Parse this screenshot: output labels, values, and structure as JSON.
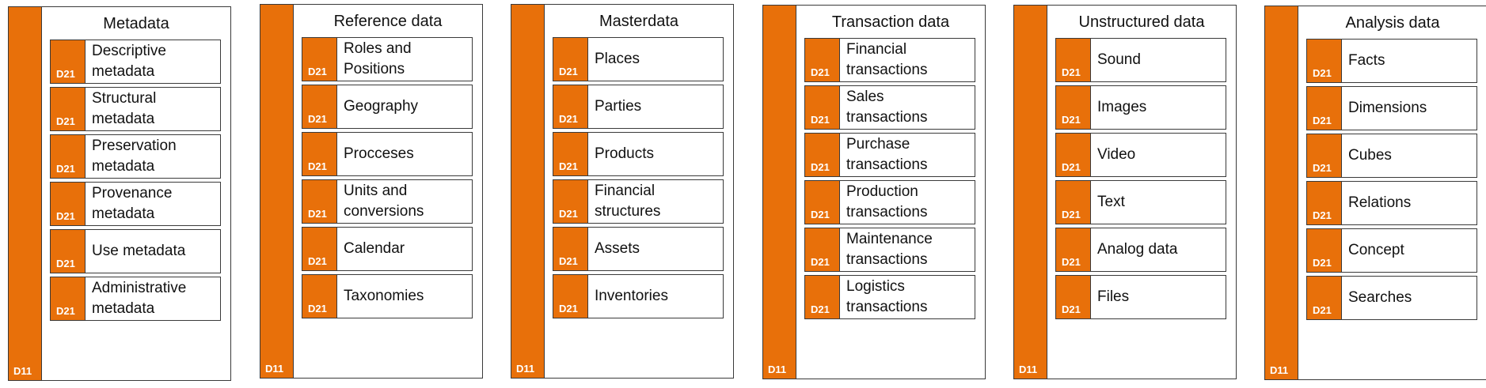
{
  "accent_color": "#e8700a",
  "panels": [
    {
      "title": "Metadata",
      "code": "D11",
      "items": [
        {
          "code": "D21",
          "label": "Descriptive\nmetadata"
        },
        {
          "code": "D21",
          "label": "Structural\nmetadata"
        },
        {
          "code": "D21",
          "label": "Preservation\nmetadata"
        },
        {
          "code": "D21",
          "label": "Provenance\nmetadata"
        },
        {
          "code": "D21",
          "label": "Use metadata"
        },
        {
          "code": "D21",
          "label": "Administrative\nmetadata"
        }
      ]
    },
    {
      "title": "Reference data",
      "code": "D11",
      "items": [
        {
          "code": "D21",
          "label": "Roles and\nPositions"
        },
        {
          "code": "D21",
          "label": "Geography"
        },
        {
          "code": "D21",
          "label": "Procceses"
        },
        {
          "code": "D21",
          "label": "Units and\nconversions"
        },
        {
          "code": "D21",
          "label": "Calendar"
        },
        {
          "code": "D21",
          "label": "Taxonomies"
        }
      ]
    },
    {
      "title": "Masterdata",
      "code": "D11",
      "items": [
        {
          "code": "D21",
          "label": "Places"
        },
        {
          "code": "D21",
          "label": "Parties"
        },
        {
          "code": "D21",
          "label": "Products"
        },
        {
          "code": "D21",
          "label": "Financial\nstructures"
        },
        {
          "code": "D21",
          "label": "Assets"
        },
        {
          "code": "D21",
          "label": "Inventories"
        }
      ]
    },
    {
      "title": "Transaction data",
      "code": "D11",
      "items": [
        {
          "code": "D21",
          "label": "Financial\ntransactions"
        },
        {
          "code": "D21",
          "label": "Sales\ntransactions"
        },
        {
          "code": "D21",
          "label": "Purchase\ntransactions"
        },
        {
          "code": "D21",
          "label": "Production\ntransactions"
        },
        {
          "code": "D21",
          "label": "Maintenance\ntransactions"
        },
        {
          "code": "D21",
          "label": "Logistics\ntransactions"
        }
      ]
    },
    {
      "title": "Unstructured data",
      "code": "D11",
      "items": [
        {
          "code": "D21",
          "label": "Sound"
        },
        {
          "code": "D21",
          "label": "Images"
        },
        {
          "code": "D21",
          "label": "Video"
        },
        {
          "code": "D21",
          "label": "Text"
        },
        {
          "code": "D21",
          "label": "Analog data"
        },
        {
          "code": "D21",
          "label": "Files"
        }
      ]
    },
    {
      "title": "Analysis data",
      "code": "D11",
      "items": [
        {
          "code": "D21",
          "label": "Facts"
        },
        {
          "code": "D21",
          "label": "Dimensions"
        },
        {
          "code": "D21",
          "label": "Cubes"
        },
        {
          "code": "D21",
          "label": "Relations"
        },
        {
          "code": "D21",
          "label": "Concept"
        },
        {
          "code": "D21",
          "label": "Searches"
        }
      ]
    }
  ]
}
